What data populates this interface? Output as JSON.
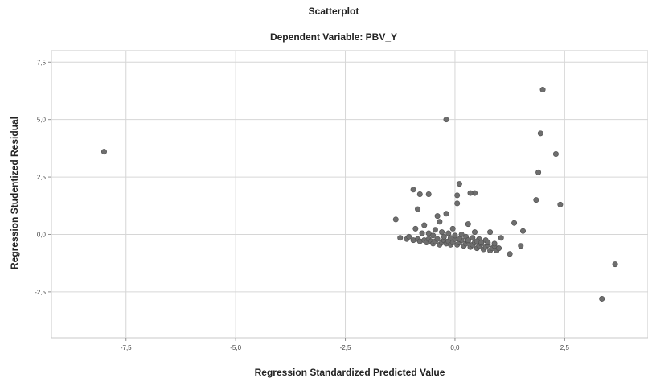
{
  "chart_data": {
    "type": "scatter",
    "title": "Scatterplot",
    "subtitle": "Dependent Variable: PBV_Y",
    "xlabel": "Regression Standardized Predicted Value",
    "ylabel": "Regression Studentized Residual",
    "xlim": [
      -9.2,
      4.4
    ],
    "ylim": [
      -4.5,
      8.0
    ],
    "xticks": [
      -7.5,
      -5.0,
      -2.5,
      0.0,
      2.5
    ],
    "xtick_labels": [
      "-7,5",
      "-5,0",
      "-2,5",
      "0,0",
      "2,5"
    ],
    "yticks": [
      7.5,
      5.0,
      2.5,
      0.0,
      -2.5
    ],
    "ytick_labels": [
      "7,5",
      "5,0",
      "2,5",
      "0,0",
      "-2,5"
    ],
    "grid": true,
    "marker_color": "#6e6e6e",
    "points": [
      [
        -8.0,
        3.6
      ],
      [
        -0.2,
        5.0
      ],
      [
        2.0,
        6.3
      ],
      [
        1.95,
        4.4
      ],
      [
        2.3,
        3.5
      ],
      [
        1.9,
        2.7
      ],
      [
        1.85,
        1.5
      ],
      [
        2.4,
        1.3
      ],
      [
        3.65,
        -1.3
      ],
      [
        3.35,
        -2.8
      ],
      [
        1.5,
        -0.5
      ],
      [
        1.55,
        0.15
      ],
      [
        1.35,
        0.5
      ],
      [
        1.25,
        -0.85
      ],
      [
        0.1,
        2.2
      ],
      [
        0.05,
        1.7
      ],
      [
        0.45,
        1.8
      ],
      [
        0.35,
        1.8
      ],
      [
        -0.95,
        1.95
      ],
      [
        -0.8,
        1.75
      ],
      [
        -0.6,
        1.75
      ],
      [
        -0.85,
        1.1
      ],
      [
        -0.7,
        0.4
      ],
      [
        -0.2,
        0.9
      ],
      [
        0.05,
        1.35
      ],
      [
        -0.4,
        0.8
      ],
      [
        -0.35,
        0.55
      ],
      [
        -1.35,
        0.65
      ],
      [
        -0.9,
        0.25
      ],
      [
        -0.75,
        0.05
      ],
      [
        -0.05,
        0.25
      ],
      [
        0.3,
        0.45
      ],
      [
        0.45,
        0.1
      ],
      [
        0.8,
        0.1
      ],
      [
        1.05,
        -0.15
      ],
      [
        -1.25,
        -0.15
      ],
      [
        -1.1,
        -0.2
      ],
      [
        -1.05,
        -0.1
      ],
      [
        -0.95,
        -0.25
      ],
      [
        -0.85,
        -0.2
      ],
      [
        -0.8,
        -0.3
      ],
      [
        -0.7,
        -0.25
      ],
      [
        -0.65,
        -0.35
      ],
      [
        -0.6,
        -0.2
      ],
      [
        -0.55,
        -0.3
      ],
      [
        -0.5,
        -0.4
      ],
      [
        -0.45,
        -0.3
      ],
      [
        -0.4,
        -0.2
      ],
      [
        -0.35,
        -0.45
      ],
      [
        -0.3,
        -0.35
      ],
      [
        -0.25,
        -0.25
      ],
      [
        -0.2,
        -0.4
      ],
      [
        -0.15,
        -0.3
      ],
      [
        -0.1,
        -0.45
      ],
      [
        -0.05,
        -0.35
      ],
      [
        0.0,
        -0.2
      ],
      [
        0.05,
        -0.45
      ],
      [
        0.1,
        -0.35
      ],
      [
        0.15,
        -0.25
      ],
      [
        0.2,
        -0.5
      ],
      [
        0.25,
        -0.4
      ],
      [
        0.3,
        -0.3
      ],
      [
        0.35,
        -0.55
      ],
      [
        0.4,
        -0.45
      ],
      [
        0.45,
        -0.35
      ],
      [
        0.5,
        -0.6
      ],
      [
        0.55,
        -0.5
      ],
      [
        0.6,
        -0.4
      ],
      [
        0.65,
        -0.65
      ],
      [
        0.7,
        -0.55
      ],
      [
        0.75,
        -0.45
      ],
      [
        0.8,
        -0.7
      ],
      [
        0.85,
        -0.6
      ],
      [
        0.9,
        -0.5
      ],
      [
        0.95,
        -0.7
      ],
      [
        1.0,
        -0.6
      ],
      [
        -0.45,
        0.2
      ],
      [
        -0.3,
        0.1
      ],
      [
        -0.15,
        0.05
      ],
      [
        0.0,
        -0.05
      ],
      [
        0.15,
        0.0
      ],
      [
        0.25,
        -0.1
      ],
      [
        0.4,
        -0.15
      ],
      [
        0.55,
        -0.2
      ],
      [
        0.7,
        -0.25
      ],
      [
        -0.6,
        0.05
      ],
      [
        -0.5,
        -0.05
      ],
      [
        -0.25,
        -0.1
      ],
      [
        -0.1,
        -0.15
      ],
      [
        0.1,
        -0.2
      ],
      [
        0.3,
        -0.25
      ],
      [
        0.5,
        -0.3
      ],
      [
        0.6,
        -0.35
      ],
      [
        0.75,
        -0.35
      ],
      [
        0.9,
        -0.4
      ]
    ]
  }
}
